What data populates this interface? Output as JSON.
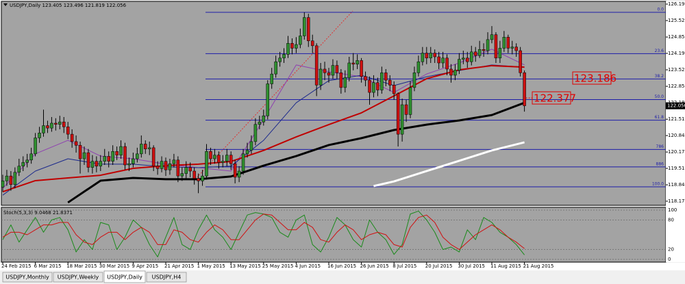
{
  "chart_data": {
    "type": "candlestick",
    "title": "USDJPY,Daily",
    "background": "#a3a3a3",
    "up_color": "#2f8f2f",
    "down_color": "#cc1010",
    "categories": [
      "24 Feb 2015",
      null,
      null,
      null,
      null,
      null,
      null,
      null,
      "6 Mar 2015",
      null,
      null,
      null,
      null,
      null,
      null,
      null,
      "18 Mar 2015",
      null,
      null,
      null,
      null,
      null,
      null,
      null,
      "30 Mar 2015",
      null,
      null,
      null,
      null,
      null,
      null,
      null,
      "9 Apr 2015",
      null,
      null,
      null,
      null,
      null,
      null,
      null,
      "21 Apr 2015",
      null,
      null,
      null,
      null,
      null,
      null,
      null,
      "1 May 2015",
      null,
      null,
      null,
      null,
      null,
      null,
      null,
      "13 May 2015",
      null,
      null,
      null,
      null,
      null,
      null,
      null,
      "25 May 2015",
      null,
      null,
      null,
      null,
      null,
      null,
      null,
      "4 Jun 2015",
      null,
      null,
      null,
      null,
      null,
      null,
      null,
      "16 Jun 2015",
      null,
      null,
      null,
      null,
      null,
      null,
      null,
      "26 Jun 2015",
      null,
      null,
      null,
      null,
      null,
      null,
      null,
      "8 Jul 2015",
      null,
      null,
      null,
      null,
      null,
      null,
      null,
      "20 Jul 2015",
      null,
      null,
      null,
      null,
      null,
      null,
      null,
      "30 Jul 2015",
      null,
      null,
      null,
      null,
      null,
      null,
      null,
      "11 Aug 2015",
      null,
      null,
      null,
      null,
      null,
      null,
      null,
      "21 Aug 2015"
    ],
    "open": [
      118.75,
      119.0,
      119.2,
      118.85,
      119.35,
      119.6,
      119.75,
      119.85,
      120.1,
      120.75,
      120.95,
      121.25,
      121.15,
      121.35,
      121.3,
      121.4,
      121.2,
      120.9,
      120.6,
      120.45,
      119.9,
      120.15,
      119.55,
      119.8,
      119.6,
      119.8,
      120.0,
      119.8,
      120.2,
      120.05,
      120.4,
      119.65,
      119.7,
      119.9,
      120.1,
      120.5,
      120.3,
      120.35,
      119.6,
      119.5,
      119.8,
      119.45,
      119.7,
      119.85,
      119.2,
      119.3,
      119.55,
      119.4,
      119.1,
      119.0,
      119.2,
      120.2,
      119.9,
      120.05,
      119.75,
      119.8,
      120.05,
      119.7,
      119.15,
      119.4,
      120.1,
      120.25,
      120.6,
      121.3,
      121.4,
      121.65,
      122.95,
      123.35,
      123.85,
      124.0,
      124.15,
      124.6,
      124.4,
      124.55,
      124.9,
      125.65,
      124.7,
      124.5,
      122.9,
      123.55,
      123.4,
      123.3,
      123.7,
      123.4,
      122.8,
      123.2,
      123.8,
      123.75,
      123.9,
      123.25,
      123.1,
      122.6,
      123.0,
      122.7,
      123.4,
      123.1,
      122.9,
      122.55,
      120.9,
      122.1,
      121.7,
      122.8,
      123.4,
      123.85,
      124.2,
      124.0,
      124.2,
      124.05,
      123.8,
      124.0,
      123.55,
      123.3,
      123.5,
      123.95,
      124.0,
      123.85,
      124.25,
      124.1,
      124.35,
      124.3,
      124.75,
      124.95,
      124.0,
      124.4,
      124.85,
      124.4,
      124.45,
      124.3,
      123.405
    ],
    "high": [
      119.25,
      119.45,
      119.4,
      119.55,
      119.9,
      120.0,
      120.1,
      120.35,
      120.95,
      121.2,
      121.9,
      121.45,
      121.6,
      121.55,
      121.65,
      121.6,
      121.4,
      121.1,
      120.85,
      120.6,
      120.4,
      120.3,
      120.05,
      120.0,
      120.05,
      120.3,
      120.2,
      120.45,
      120.4,
      120.65,
      120.55,
      119.95,
      120.15,
      120.35,
      120.85,
      120.65,
      120.6,
      120.45,
      119.8,
      120.0,
      119.95,
      119.9,
      120.1,
      120.0,
      119.55,
      119.8,
      119.75,
      119.55,
      119.3,
      119.45,
      120.5,
      120.35,
      120.3,
      120.2,
      120.05,
      120.3,
      120.2,
      119.85,
      119.6,
      120.3,
      120.55,
      120.85,
      121.55,
      121.65,
      121.9,
      123.1,
      123.6,
      124.1,
      124.25,
      124.4,
      124.9,
      124.8,
      124.85,
      125.2,
      125.86,
      125.8,
      124.95,
      124.6,
      123.8,
      123.85,
      123.6,
      123.95,
      123.9,
      123.55,
      123.5,
      124.05,
      124.2,
      124.15,
      124.0,
      123.45,
      123.25,
      123.3,
      123.2,
      123.65,
      123.55,
      123.3,
      123.05,
      122.6,
      122.35,
      122.3,
      123.05,
      123.65,
      124.1,
      124.45,
      124.45,
      124.45,
      124.35,
      124.25,
      124.25,
      124.15,
      123.75,
      123.75,
      124.2,
      124.3,
      124.25,
      124.5,
      124.45,
      124.7,
      124.6,
      125.05,
      125.3,
      125.05,
      124.7,
      125.1,
      124.95,
      124.7,
      124.6,
      124.45,
      123.496
    ],
    "low": [
      118.55,
      118.8,
      118.6,
      118.7,
      119.2,
      119.4,
      119.55,
      119.7,
      120.0,
      120.55,
      120.8,
      120.95,
      121.0,
      121.05,
      121.1,
      120.95,
      120.7,
      120.35,
      120.15,
      119.3,
      119.65,
      119.35,
      119.3,
      119.35,
      119.4,
      119.65,
      119.55,
      119.65,
      119.85,
      119.9,
      119.45,
      119.4,
      119.55,
      119.75,
      119.95,
      120.1,
      120.05,
      119.4,
      119.25,
      119.35,
      119.2,
      119.25,
      119.55,
      118.95,
      119.0,
      119.1,
      119.15,
      118.85,
      118.5,
      118.8,
      119.05,
      119.65,
      119.7,
      119.5,
      119.55,
      119.6,
      119.45,
      118.9,
      118.95,
      119.25,
      119.95,
      120.1,
      120.45,
      121.1,
      121.25,
      121.5,
      122.75,
      123.2,
      123.65,
      123.8,
      124.0,
      124.15,
      124.2,
      124.4,
      124.75,
      124.45,
      124.2,
      122.45,
      122.7,
      123.1,
      123.0,
      123.15,
      123.15,
      122.55,
      122.6,
      123.05,
      123.5,
      123.55,
      123.0,
      122.85,
      122.1,
      122.4,
      122.45,
      122.55,
      122.85,
      122.65,
      122.3,
      120.4,
      120.6,
      121.4,
      121.55,
      122.65,
      123.25,
      123.7,
      123.75,
      123.8,
      123.8,
      123.55,
      123.6,
      123.3,
      123.0,
      123.1,
      123.35,
      123.75,
      123.6,
      123.7,
      123.85,
      124.0,
      124.05,
      124.15,
      124.6,
      123.8,
      123.8,
      124.25,
      124.2,
      124.15,
      124.05,
      123.25,
      121.819
    ],
    "close": [
      119.0,
      119.2,
      118.85,
      119.35,
      119.6,
      119.75,
      119.85,
      120.1,
      120.75,
      120.95,
      121.25,
      121.15,
      121.35,
      121.3,
      121.4,
      121.2,
      120.9,
      120.6,
      120.45,
      119.9,
      120.15,
      119.55,
      119.8,
      119.6,
      119.8,
      120.0,
      119.8,
      120.2,
      120.05,
      120.4,
      119.65,
      119.7,
      119.9,
      120.1,
      120.5,
      120.3,
      120.35,
      119.6,
      119.5,
      119.8,
      119.45,
      119.7,
      119.85,
      119.2,
      119.3,
      119.55,
      119.4,
      119.1,
      119.0,
      119.2,
      120.2,
      119.9,
      120.05,
      119.75,
      119.8,
      120.05,
      119.7,
      119.15,
      119.4,
      120.1,
      120.25,
      120.6,
      121.3,
      121.4,
      121.65,
      122.95,
      123.35,
      123.85,
      124.0,
      124.15,
      124.6,
      124.4,
      124.55,
      124.9,
      125.65,
      124.7,
      124.5,
      122.9,
      123.55,
      123.4,
      123.3,
      123.7,
      123.4,
      122.8,
      123.2,
      123.8,
      123.75,
      123.9,
      123.25,
      123.1,
      122.6,
      123.0,
      122.7,
      123.4,
      123.1,
      122.9,
      122.55,
      120.9,
      122.1,
      121.7,
      122.8,
      123.4,
      123.85,
      124.2,
      124.0,
      124.2,
      124.05,
      123.8,
      124.0,
      123.55,
      123.3,
      123.5,
      123.95,
      124.0,
      123.85,
      124.25,
      124.1,
      124.35,
      124.3,
      124.75,
      124.95,
      124.0,
      124.4,
      124.85,
      124.4,
      124.45,
      124.3,
      123.4,
      122.056
    ],
    "ylim": [
      118.007,
      126.306
    ],
    "yticks": [
      126.195,
      125.525,
      124.855,
      {
        "value": 124.19,
        "label": "124.190"
      },
      {
        "value": 123.52,
        "label": "123.520"
      },
      {
        "value": 122.85,
        "label": "122.850"
      },
      {
        "value": 122.18,
        "label": "122.180"
      },
      {
        "value": 121.51,
        "label": "121.510"
      },
      120.845,
      120.175,
      {
        "value": 119.51,
        "label": "119.510"
      },
      {
        "value": 118.84,
        "label": "118.840"
      },
      118.175
    ],
    "indicators": [
      {
        "color": "#8e3fb0",
        "width": 1,
        "x": [
          0,
          8,
          16,
          24,
          32,
          40,
          48,
          56,
          64,
          72,
          80,
          88,
          96,
          104,
          112,
          120,
          128
        ],
        "values": [
          118.7,
          120.1,
          120.65,
          120.01,
          119.9,
          119.68,
          119.54,
          119.4,
          121.49,
          123.72,
          123.44,
          123.24,
          122.6,
          123.35,
          123.8,
          124.36,
          123.72
        ]
      },
      {
        "color": "#1c2a8c",
        "width": 1,
        "x": [
          0,
          8,
          16,
          24,
          32,
          40,
          48,
          56,
          64,
          72,
          80,
          88,
          96,
          104,
          112,
          120,
          128
        ],
        "values": [
          118.42,
          119.4,
          119.9,
          119.68,
          119.68,
          119.57,
          119.54,
          119.6,
          120.65,
          122.18,
          123.08,
          123.3,
          122.88,
          123.24,
          123.49,
          123.72,
          123.63
        ]
      },
      {
        "color": "#c00000",
        "width": 2,
        "x": [
          0,
          8,
          16,
          24,
          32,
          40,
          48,
          56,
          64,
          72,
          80,
          88,
          96,
          104,
          112,
          120,
          128
        ],
        "values": [
          118.56,
          119.01,
          119.12,
          119.23,
          119.51,
          119.62,
          119.68,
          119.79,
          120.24,
          120.79,
          121.29,
          121.77,
          122.46,
          123.16,
          123.52,
          123.69,
          123.63
        ]
      },
      {
        "color": "#000000",
        "width": 3,
        "x": [
          16,
          24,
          32,
          40,
          48,
          56,
          64,
          72,
          80,
          88,
          96,
          104,
          112,
          120,
          128
        ],
        "values": [
          118.12,
          119.01,
          119.12,
          119.07,
          119.07,
          119.18,
          119.62,
          120.01,
          120.46,
          120.74,
          121.07,
          121.29,
          121.46,
          121.68,
          122.18
        ]
      },
      {
        "color": "#ffffff",
        "width": 3,
        "x": [
          91,
          96,
          104,
          112,
          120,
          128
        ],
        "values": [
          118.79,
          118.98,
          119.4,
          119.82,
          120.24,
          120.57
        ]
      }
    ],
    "fib": {
      "color": "#1c1ca8",
      "levels": [
        125.86,
        124.18,
        123.15,
        122.31,
        121.47,
        120.28,
        119.57,
        118.76
      ],
      "labels": [
        "0.0",
        "23.6",
        "38.2",
        "50.0",
        "61.8",
        "786",
        "886",
        "100.0"
      ]
    },
    "price_labels": [
      123.186,
      122.377
    ],
    "price_label_color": "#e00000",
    "stoch": {
      "title": "Stoch(5,3,3)",
      "ylim": [
        0,
        100
      ],
      "yticks": [
        100,
        80,
        20,
        0
      ],
      "x": [
        0,
        2,
        4,
        6,
        8,
        10,
        12,
        14,
        16,
        18,
        20,
        22,
        24,
        26,
        28,
        30,
        32,
        34,
        36,
        38,
        40,
        42,
        44,
        46,
        48,
        50,
        52,
        54,
        56,
        58,
        60,
        62,
        64,
        66,
        68,
        70,
        72,
        74,
        76,
        78,
        80,
        82,
        84,
        86,
        88,
        90,
        92,
        94,
        96,
        98,
        100,
        102,
        104,
        106,
        108,
        110,
        112,
        114,
        116,
        118,
        120,
        122,
        124,
        126,
        128
      ],
      "series": [
        {
          "color": "#1a8a1a",
          "values": [
            40,
            70,
            35,
            60,
            85,
            55,
            80,
            85,
            60,
            15,
            40,
            20,
            75,
            70,
            20,
            45,
            80,
            65,
            30,
            5,
            45,
            85,
            30,
            20,
            60,
            90,
            60,
            45,
            20,
            55,
            90,
            95,
            92,
            85,
            55,
            45,
            80,
            90,
            30,
            15,
            45,
            85,
            70,
            40,
            25,
            80,
            55,
            40,
            10,
            30,
            92,
            98,
            80,
            55,
            20,
            25,
            15,
            60,
            40,
            85,
            75,
            55,
            45,
            30,
            9.0468
          ]
        },
        {
          "color": "#d01010",
          "values": [
            45,
            55,
            55,
            50,
            60,
            70,
            70,
            75,
            75,
            50,
            35,
            30,
            45,
            55,
            55,
            40,
            55,
            65,
            55,
            30,
            30,
            60,
            55,
            40,
            35,
            55,
            70,
            60,
            40,
            40,
            60,
            80,
            92,
            90,
            75,
            60,
            60,
            75,
            65,
            40,
            35,
            55,
            70,
            60,
            40,
            50,
            55,
            50,
            30,
            25,
            65,
            85,
            90,
            75,
            45,
            30,
            20,
            35,
            50,
            60,
            70,
            60,
            45,
            35,
            21.8371
          ]
        }
      ]
    }
  },
  "tabs": [
    "USDJPY,Monthly",
    "USDJPY,Weekly",
    "USDJPY,Daily",
    "USDJPY,H4"
  ],
  "active_tab": 2
}
